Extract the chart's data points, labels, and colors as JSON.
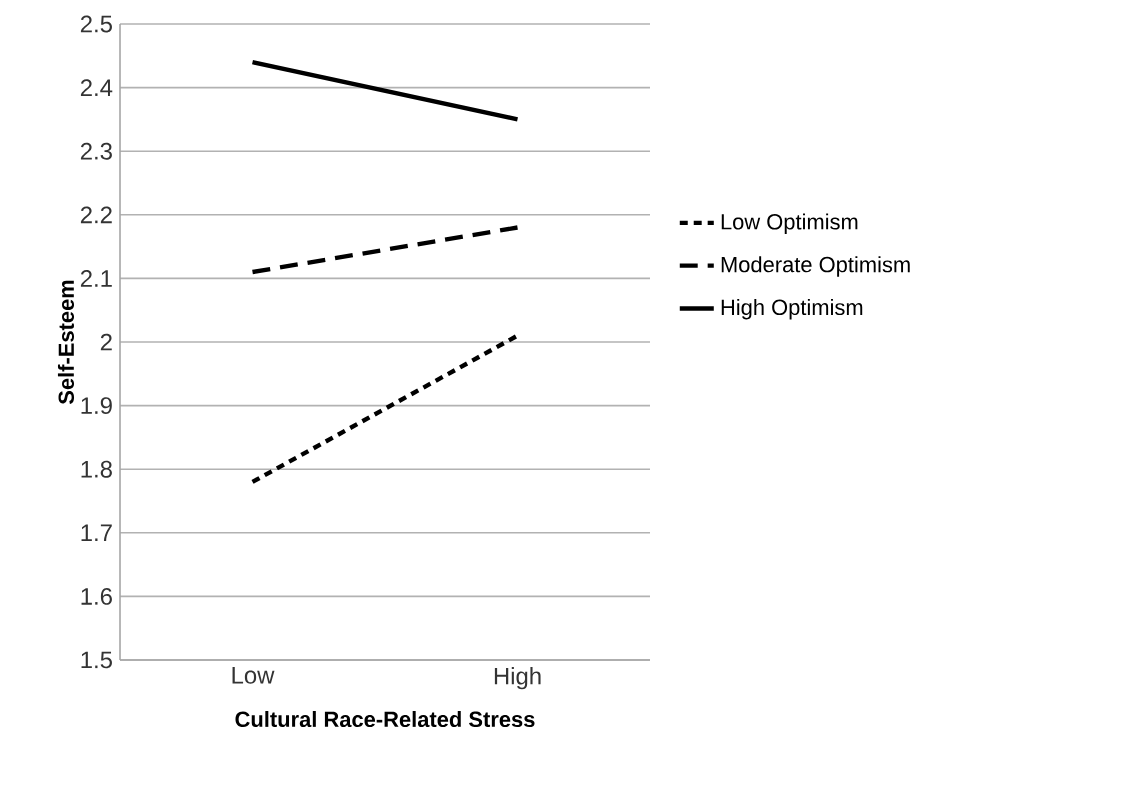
{
  "chart_data": {
    "type": "line",
    "xlabel": "Cultural Race-Related Stress",
    "ylabel": "Self-Esteem",
    "categories": [
      "Low",
      "High"
    ],
    "series": [
      {
        "name": "Low Optimism",
        "color": "#000000",
        "line_style": "dotted",
        "values": [
          1.78,
          2.01
        ]
      },
      {
        "name": "Moderate Optimism",
        "color": "#000000",
        "line_style": "dashed",
        "values": [
          2.11,
          2.18
        ]
      },
      {
        "name": "High Optimism",
        "color": "#000000",
        "line_style": "solid",
        "values": [
          2.44,
          2.35
        ]
      }
    ],
    "ylim": [
      1.5,
      2.5
    ],
    "yticks": [
      1.5,
      1.6,
      1.7,
      1.8,
      1.9,
      2,
      2.1,
      2.2,
      2.3,
      2.4,
      2.5
    ],
    "grid": "y",
    "legend": "right",
    "marker": "none"
  }
}
